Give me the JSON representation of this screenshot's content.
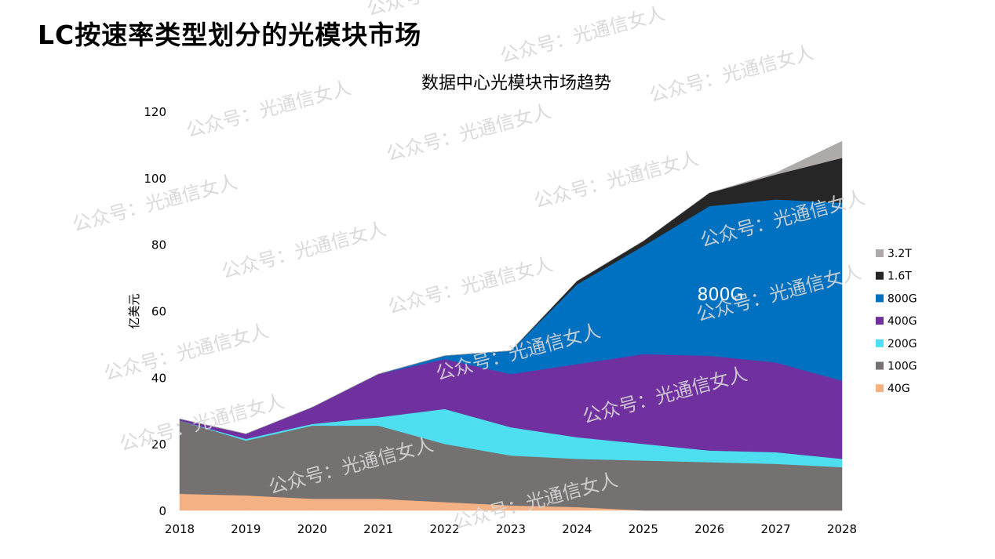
{
  "page": {
    "title": "LC按速率类型划分的光模块市场",
    "watermark": "公众号：光通信女人"
  },
  "chart_data": {
    "type": "area",
    "stacked": true,
    "title": "数据中心光模块市场趋势",
    "xlabel": "",
    "ylabel": "亿美元",
    "ylim": [
      0,
      120
    ],
    "yticks": [
      0,
      20,
      40,
      60,
      80,
      100,
      120
    ],
    "x": [
      "2018",
      "2019",
      "2020",
      "2021",
      "2022",
      "2023",
      "2024",
      "2025",
      "2026",
      "2027",
      "2028"
    ],
    "grid": true,
    "legend_position": "right",
    "annotation": "800G",
    "series": [
      {
        "name": "40G",
        "color": "#f4b183",
        "values": [
          5,
          4.5,
          3.5,
          3.5,
          2.5,
          1.5,
          1,
          0,
          0,
          0,
          0
        ]
      },
      {
        "name": "100G",
        "color": "#757171",
        "values": [
          22,
          16.5,
          22,
          22,
          17.5,
          15,
          14.5,
          15,
          14.5,
          14,
          13
        ]
      },
      {
        "name": "200G",
        "color": "#4ddfef",
        "values": [
          0,
          0.5,
          0.5,
          2.5,
          10.5,
          8.5,
          6.5,
          5,
          3.5,
          3.5,
          2.5
        ]
      },
      {
        "name": "400G",
        "color": "#7030a0",
        "values": [
          0.5,
          1.5,
          5,
          13,
          15,
          16,
          22,
          27,
          28.5,
          27,
          23.5
        ]
      },
      {
        "name": "800G",
        "color": "#0070c0",
        "values": [
          0,
          0,
          0,
          0,
          1,
          7,
          24,
          32.5,
          45,
          49,
          53.5
        ]
      },
      {
        "name": "1.6T",
        "color": "#262626",
        "values": [
          0,
          0,
          0,
          0,
          0,
          0,
          1,
          1.5,
          4,
          7.5,
          13.5
        ]
      },
      {
        "name": "3.2T",
        "color": "#aeaaaa",
        "values": [
          0,
          0,
          0,
          0,
          0,
          0,
          0,
          0,
          0,
          0.5,
          5
        ]
      }
    ]
  }
}
